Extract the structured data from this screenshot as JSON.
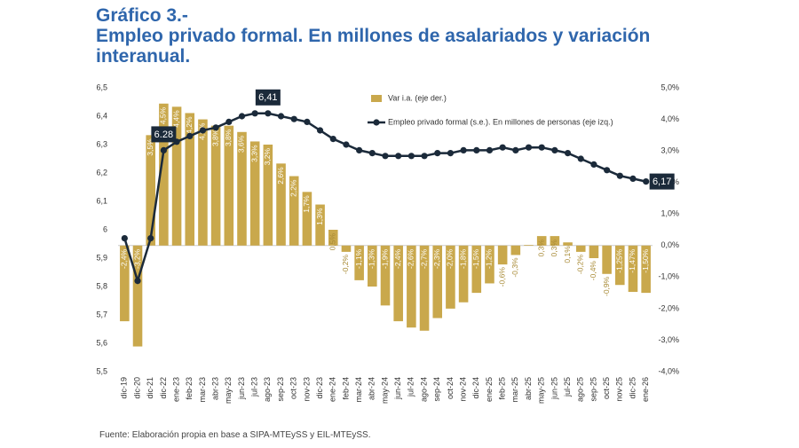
{
  "chart_data": {
    "type": "combo",
    "kicker": "Gráfico 3.-",
    "title": "Empleo privado formal. En millones de asalariados y variación interanual.",
    "source": "Fuente: Elaboración propia en base a SIPA-MTEySS y EIL-MTEySS.",
    "categories": [
      "dic-19",
      "dic-20",
      "dic-21",
      "dic-22",
      "ene-23",
      "feb-23",
      "mar-23",
      "abr-23",
      "may-23",
      "jun-23",
      "jul-23",
      "ago-23",
      "sep-23",
      "oct-23",
      "nov-23",
      "dic-23",
      "ene-24",
      "feb-24",
      "mar-24",
      "abr-24",
      "may-24",
      "jun-24",
      "jul-24",
      "ago-24",
      "sep-24",
      "oct-24",
      "nov-24",
      "dic-24",
      "ene-25",
      "feb-25",
      "mar-25",
      "abr-25",
      "may-25",
      "jun-25",
      "jul-25",
      "ago-25",
      "sep-25",
      "oct-25",
      "nov-25",
      "dic-25",
      "ene-26"
    ],
    "series": [
      {
        "name": "Var i.a. (eje der.)",
        "type": "bar",
        "axis": "y2",
        "color": "#c9a84c",
        "values": [
          -2.4,
          -3.2,
          3.5,
          4.5,
          4.4,
          4.2,
          4.0,
          3.8,
          3.8,
          3.6,
          3.3,
          3.2,
          2.6,
          2.2,
          1.7,
          1.3,
          0.5,
          -0.2,
          -1.1,
          -1.3,
          -1.9,
          -2.4,
          -2.6,
          -2.7,
          -2.3,
          -2.0,
          -1.8,
          -1.5,
          -1.2,
          -0.6,
          -0.3,
          0.02,
          0.3,
          0.3,
          0.1,
          -0.2,
          -0.4,
          -0.9,
          -1.25,
          -1.47,
          -1.5
        ],
        "value_labels": [
          "-2,4%",
          "-3,2%",
          "3,5%",
          "4,5%",
          "4,4%",
          "4,2%",
          "4,0%",
          "3,8%",
          "3,8%",
          "3,6%",
          "3,3%",
          "3,2%",
          "2,6%",
          "2,2%",
          "1,7%",
          "1,3%",
          "0,5%",
          "-0,2%",
          "-1,1%",
          "-1,3%",
          "-1,9%",
          "-2,4%",
          "-2,6%",
          "-2,7%",
          "-2,3%",
          "-2,0%",
          "-1,8%",
          "-1,5%",
          "-1,2%",
          "-0,6%",
          "-0,3%",
          null,
          "0,3%",
          "0,3%",
          "0,1%",
          "-0,2%",
          "-0,4%",
          "-0,9%",
          "-1,25%",
          "-1,47%",
          "-1,50%"
        ]
      },
      {
        "name": "Empleo privado formal (s.e.). En millones de personas (eje izq.)",
        "type": "line",
        "axis": "y",
        "color": "#1b2a3a",
        "values": [
          5.97,
          5.82,
          5.97,
          6.28,
          6.31,
          6.33,
          6.35,
          6.36,
          6.38,
          6.4,
          6.41,
          6.41,
          6.4,
          6.39,
          6.38,
          6.35,
          6.32,
          6.3,
          6.28,
          6.27,
          6.26,
          6.26,
          6.26,
          6.26,
          6.27,
          6.27,
          6.28,
          6.28,
          6.28,
          6.29,
          6.28,
          6.29,
          6.29,
          6.28,
          6.27,
          6.25,
          6.23,
          6.21,
          6.19,
          6.18,
          6.17
        ],
        "value_labels": [
          null,
          null,
          null,
          "6.28",
          null,
          null,
          null,
          null,
          null,
          null,
          null,
          "6,41",
          null,
          null,
          null,
          null,
          null,
          null,
          null,
          null,
          null,
          null,
          null,
          null,
          null,
          null,
          null,
          null,
          null,
          null,
          null,
          null,
          null,
          null,
          null,
          null,
          null,
          null,
          null,
          null,
          "6,17"
        ]
      }
    ],
    "ylim": [
      5.5,
      6.5
    ],
    "yticks": [
      {
        "value": 5.5,
        "label": "5,5"
      },
      {
        "value": 5.6,
        "label": "5,6"
      },
      {
        "value": 5.7,
        "label": "5,7"
      },
      {
        "value": 5.8,
        "label": "5,8"
      },
      {
        "value": 5.9,
        "label": "5,9"
      },
      6,
      {
        "value": 6.1,
        "label": "6,1"
      },
      {
        "value": 6.2,
        "label": "6,2"
      },
      {
        "value": 6.3,
        "label": "6,3"
      },
      {
        "value": 6.4,
        "label": "6,4"
      },
      {
        "value": 6.5,
        "label": "6,5"
      }
    ],
    "y2lim": [
      -4,
      5
    ],
    "y2ticks": [
      {
        "value": -4,
        "label": "-4,0%"
      },
      {
        "value": -3,
        "label": "-3,0%"
      },
      {
        "value": -2,
        "label": "-2,0%"
      },
      {
        "value": -1,
        "label": "-1,0%"
      },
      {
        "value": 0,
        "label": "0,0%"
      },
      {
        "value": 1,
        "label": "1,0%"
      },
      {
        "value": 2,
        "label": "2,0%"
      },
      {
        "value": 3,
        "label": "3,0%"
      },
      {
        "value": 4,
        "label": "4,0%"
      },
      {
        "value": 5,
        "label": "5,0%"
      }
    ],
    "grid": false
  }
}
